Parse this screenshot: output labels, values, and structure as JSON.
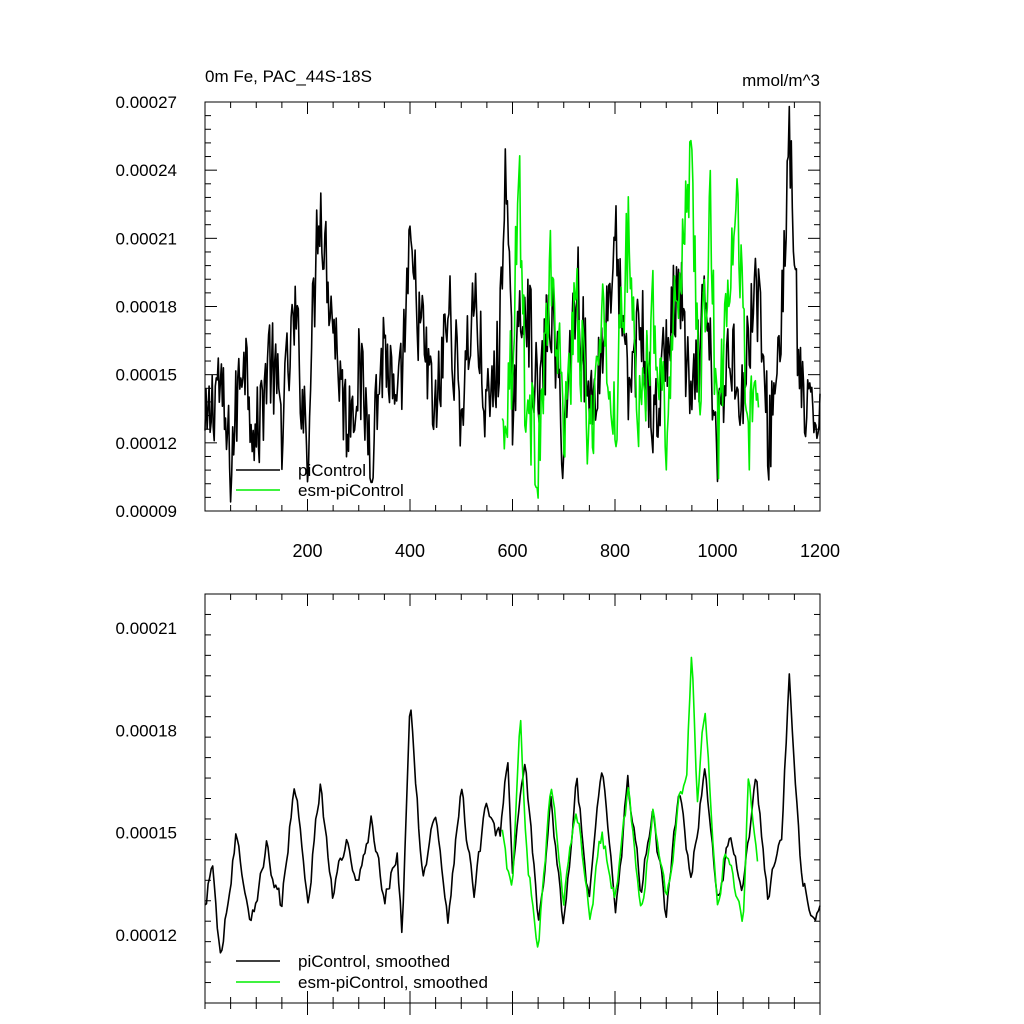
{
  "chart_data": [
    {
      "type": "line",
      "title": "0m Fe, PAC_44S-18S",
      "units": "mmol/m^3",
      "xlim": [
        0,
        1200
      ],
      "ylim": [
        9e-05,
        0.00027
      ],
      "xticks": [
        200,
        400,
        600,
        800,
        1000,
        1200
      ],
      "xtick_labels": [
        "200",
        "400",
        "600",
        "800",
        "1000",
        "1200"
      ],
      "yticks": [
        9e-05,
        0.00012,
        0.00015,
        0.00018,
        0.00021,
        0.00024,
        0.00027
      ],
      "ytick_labels": [
        "0.00009",
        "0.00012",
        "0.00015",
        "0.00018",
        "0.00021",
        "0.00024",
        "0.00027"
      ],
      "legend_position": "bottom-left",
      "series": [
        {
          "name": "piControl",
          "color": "#000000",
          "x_range": [
            0,
            1200
          ],
          "x": [
            0,
            25,
            50,
            75,
            100,
            125,
            150,
            175,
            200,
            222,
            250,
            275,
            300,
            325,
            350,
            375,
            400,
            425,
            450,
            475,
            500,
            525,
            550,
            575,
            585,
            600,
            625,
            650,
            675,
            700,
            725,
            750,
            775,
            800,
            825,
            850,
            875,
            900,
            925,
            950,
            975,
            1000,
            1025,
            1050,
            1075,
            1100,
            1125,
            1140,
            1160,
            1180,
            1200
          ],
          "y": [
            0.00012,
            0.00015,
            0.00011,
            0.000165,
            0.00012,
            0.00016,
            0.00013,
            0.000175,
            0.00012,
            0.00023,
            0.000175,
            0.00013,
            0.00015,
            0.00012,
            0.000165,
            0.000125,
            0.0002,
            0.000165,
            0.00013,
            0.00018,
            0.000135,
            0.000185,
            0.00013,
            0.00016,
            0.000248,
            0.00014,
            0.00019,
            0.000135,
            0.00018,
            0.00012,
            0.000195,
            0.000135,
            0.00016,
            0.00021,
            0.00014,
            0.000175,
            0.000125,
            0.00016,
            0.00019,
            0.00013,
            0.00018,
            0.00012,
            0.000165,
            0.00014,
            0.000195,
            0.00012,
            0.000175,
            0.000257,
            0.000145,
            0.000125,
            0.00014
          ]
        },
        {
          "name": "esm-piControl",
          "color": "#00ee00",
          "x_range": [
            580,
            1080
          ],
          "x": [
            580,
            600,
            613,
            625,
            650,
            675,
            700,
            725,
            750,
            775,
            800,
            825,
            850,
            875,
            900,
            925,
            950,
            965,
            985,
            1000,
            1020,
            1040,
            1060,
            1080
          ],
          "y": [
            0.000125,
            0.00016,
            0.000243,
            0.00014,
            0.000115,
            0.000195,
            0.00013,
            0.00018,
            0.00012,
            0.00017,
            0.00013,
            0.00021,
            0.000125,
            0.00018,
            0.00013,
            0.000195,
            0.000249,
            0.00013,
            0.000225,
            0.00012,
            0.00018,
            0.000225,
            0.000125,
            0.00014
          ]
        }
      ]
    },
    {
      "type": "line",
      "xlim": [
        0,
        1200
      ],
      "ylim": [
        0.0001,
        0.00022
      ],
      "yticks": [
        0.00012,
        0.00015,
        0.00018,
        0.00021
      ],
      "ytick_labels": [
        "0.00012",
        "0.00015",
        "0.00018",
        "0.00021"
      ],
      "legend_position": "bottom-left",
      "series": [
        {
          "name": "piControl, smoothed",
          "color": "#000000",
          "x_range": [
            0,
            1200
          ],
          "x": [
            0,
            15,
            30,
            60,
            90,
            120,
            150,
            175,
            200,
            225,
            250,
            275,
            300,
            325,
            350,
            375,
            385,
            400,
            425,
            450,
            475,
            500,
            525,
            550,
            575,
            590,
            600,
            625,
            650,
            675,
            700,
            725,
            750,
            775,
            800,
            825,
            850,
            875,
            900,
            925,
            950,
            975,
            1000,
            1025,
            1050,
            1075,
            1100,
            1125,
            1140,
            1160,
            1180,
            1200
          ],
          "y": [
            0.000128,
            0.000142,
            0.000113,
            0.00015,
            0.000125,
            0.000145,
            0.000128,
            0.000167,
            0.00013,
            0.000165,
            0.00013,
            0.000148,
            0.000135,
            0.000155,
            0.00013,
            0.000145,
            0.000118,
            0.00019,
            0.000135,
            0.000155,
            0.000125,
            0.000165,
            0.00013,
            0.000158,
            0.000148,
            0.000173,
            0.000135,
            0.00017,
            0.000125,
            0.000158,
            0.000122,
            0.000165,
            0.00013,
            0.00017,
            0.000125,
            0.000165,
            0.000135,
            0.000155,
            0.000125,
            0.000162,
            0.000135,
            0.000172,
            0.000128,
            0.00015,
            0.000135,
            0.000165,
            0.00013,
            0.00015,
            0.000199,
            0.000145,
            0.000125,
            0.00013
          ]
        },
        {
          "name": "esm-piControl, smoothed",
          "color": "#00ee00",
          "x_range": [
            580,
            1080
          ],
          "x": [
            580,
            600,
            615,
            630,
            650,
            675,
            700,
            725,
            750,
            775,
            800,
            825,
            850,
            875,
            900,
            925,
            940,
            950,
            960,
            975,
            990,
            1000,
            1015,
            1030,
            1050,
            1060,
            1080
          ],
          "y": [
            0.00015,
            0.00013,
            0.000183,
            0.00014,
            0.000118,
            0.000165,
            0.00013,
            0.00016,
            0.000125,
            0.00015,
            0.00013,
            0.000162,
            0.000125,
            0.000158,
            0.000128,
            0.000158,
            0.00017,
            0.000205,
            0.00016,
            0.000185,
            0.00015,
            0.00013,
            0.000145,
            0.000138,
            0.000122,
            0.000165,
            0.00014
          ]
        }
      ]
    }
  ]
}
